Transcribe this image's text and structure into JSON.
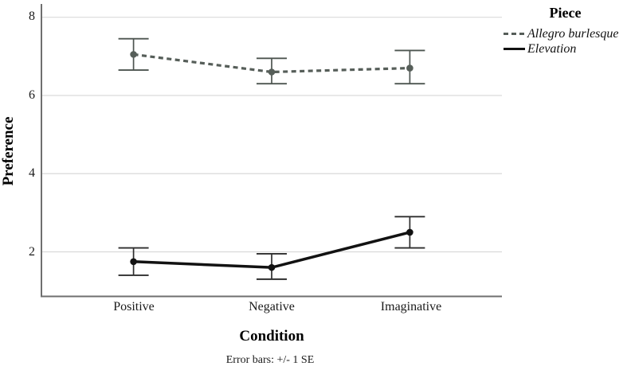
{
  "figure": {
    "y_axis_title": "Preference",
    "x_axis_title": "Condition",
    "caption": "Error bars: +/- 1 SE",
    "legend": {
      "title": "Piece"
    }
  },
  "chart_data": {
    "type": "line",
    "title": "",
    "xlabel": "Condition",
    "ylabel": "Preference",
    "categories": [
      "Positive",
      "Negative",
      "Imaginative"
    ],
    "yticks": [
      2,
      4,
      6,
      8
    ],
    "ylim": [
      0.86,
      8.34
    ],
    "grid": "horizontal",
    "legend_title": "Piece",
    "legend_position": "top-right",
    "error_note": "Error bars: +/- 1 SE",
    "series": [
      {
        "name": "Allegro burlesque",
        "style": "dashed",
        "color": "#565e59",
        "error_color": "#4d5550",
        "values": [
          7.05,
          6.6,
          6.7
        ],
        "err_low": [
          6.65,
          6.3,
          6.3
        ],
        "err_high": [
          7.45,
          6.95,
          7.15
        ]
      },
      {
        "name": "Elevation",
        "style": "solid",
        "color": "#121212",
        "error_color": "#2e2e2e",
        "values": [
          1.75,
          1.6,
          2.5
        ],
        "err_low": [
          1.4,
          1.3,
          2.1
        ],
        "err_high": [
          2.1,
          1.95,
          2.9
        ]
      }
    ]
  }
}
